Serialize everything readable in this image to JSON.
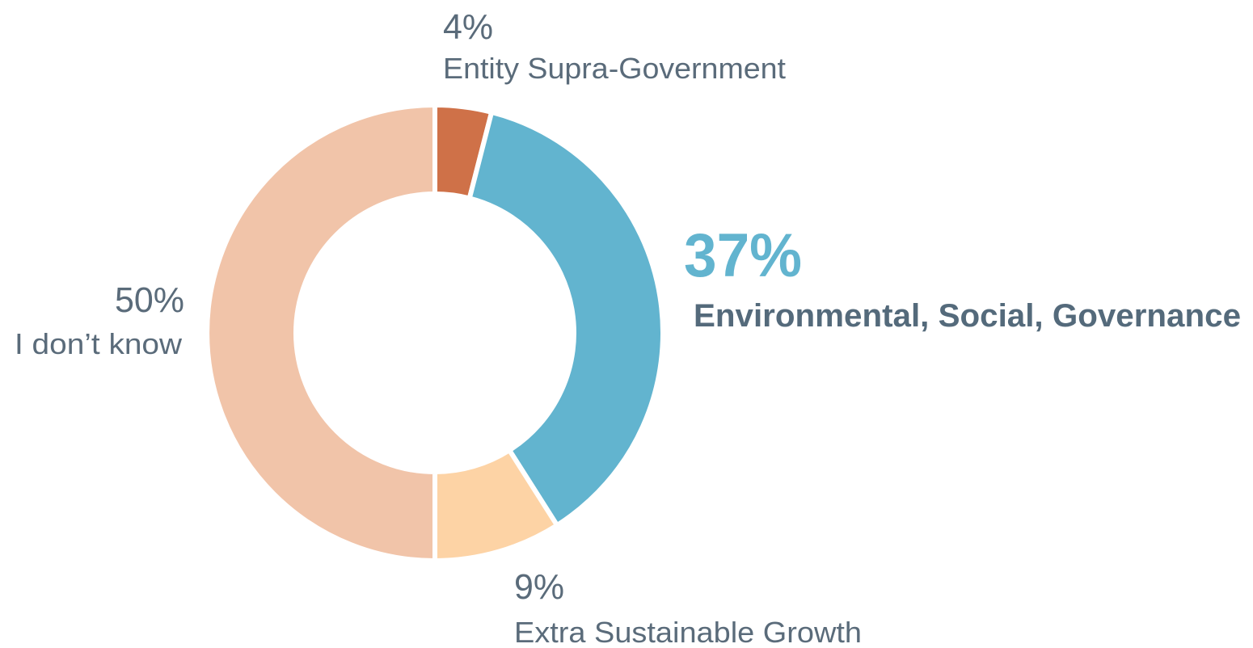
{
  "chart_data": {
    "type": "donut",
    "categories": [
      "Entity Supra-Government",
      "Environmental, Social, Governance",
      "Extra Sustainable Growth",
      "I don’t know"
    ],
    "values": [
      4,
      37,
      9,
      50
    ],
    "value_labels": [
      "4%",
      "37%",
      "9%",
      "50%"
    ],
    "colors": [
      "#cf7148",
      "#62b4cf",
      "#fdd3a5",
      "#f1c4a9"
    ]
  }
}
